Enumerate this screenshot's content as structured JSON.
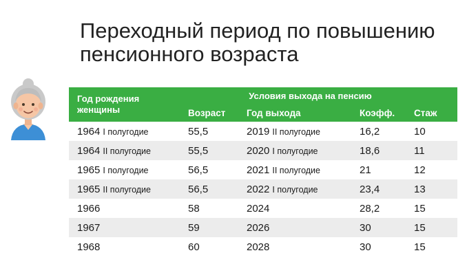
{
  "title": {
    "line1": "Переходный период по повышению",
    "line2": "пенсионного возраста"
  },
  "table": {
    "header": {
      "birth_year": "Год рождения женщины",
      "group": "Условия выхода на пенсию",
      "age": "Возраст",
      "exit_year": "Год выхода",
      "coef": "Коэфф.",
      "tenure": "Стаж"
    },
    "rows": [
      {
        "birth_year": "1964",
        "birth_half": "I полугодие",
        "age": "55,5",
        "exit_year": "2019",
        "exit_half": "II полугодие",
        "coef": "16,2",
        "tenure": "10"
      },
      {
        "birth_year": "1964",
        "birth_half": "II полугодие",
        "age": "55,5",
        "exit_year": "2020",
        "exit_half": "I полугодие",
        "coef": "18,6",
        "tenure": "11"
      },
      {
        "birth_year": "1965",
        "birth_half": "I полугодие",
        "age": "56,5",
        "exit_year": "2021",
        "exit_half": "II полугодие",
        "coef": "21",
        "tenure": "12"
      },
      {
        "birth_year": "1965",
        "birth_half": "II полугодие",
        "age": "56,5",
        "exit_year": "2022",
        "exit_half": "I полугодие",
        "coef": "23,4",
        "tenure": "13"
      },
      {
        "birth_year": "1966",
        "birth_half": "",
        "age": "58",
        "exit_year": "2024",
        "exit_half": "",
        "coef": "28,2",
        "tenure": "15"
      },
      {
        "birth_year": "1967",
        "birth_half": "",
        "age": "59",
        "exit_year": "2026",
        "exit_half": "",
        "coef": "30",
        "tenure": "15"
      },
      {
        "birth_year": "1968",
        "birth_half": "",
        "age": "60",
        "exit_year": "2028",
        "exit_half": "",
        "coef": "30",
        "tenure": "15"
      }
    ]
  },
  "icons": {
    "avatar": "elderly-woman-icon"
  },
  "colors": {
    "header_green": "#3aae43",
    "stripe": "#ececec"
  }
}
